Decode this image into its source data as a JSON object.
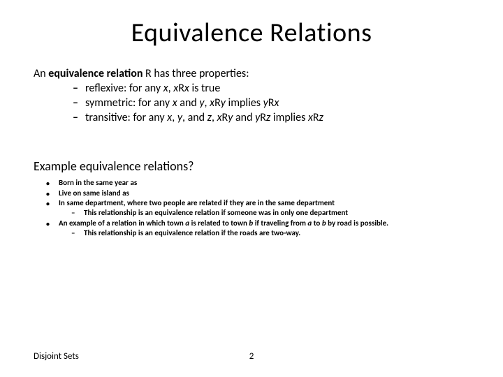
{
  "title": "Equivalence Relations",
  "intro_prefix": "An ",
  "intro_bold": "equivalence relation",
  "intro_suffix": " R has three properties:",
  "props": [
    {
      "label": "reflexive: for any ",
      "i1": "x",
      "mid": ", ",
      "i2": "x",
      "r": "R",
      "i3": "x",
      "end": " is true"
    },
    {
      "label": "symmetric: for any ",
      "i1": "x",
      "mid1": " and ",
      "i2": "y",
      "mid2": ", ",
      "i3": "x",
      "r1": "R",
      "i4": "y",
      "mid3": " implies ",
      "i5": "y",
      "r2": "R",
      "i6": "x"
    },
    {
      "label": "transitive: for any ",
      "i1": "x",
      "c1": ", ",
      "i2": "y",
      "c2": ", and ",
      "i3": "z",
      "c3": ", ",
      "i4": "x",
      "r1": "R",
      "i5": "y",
      "c4": " and ",
      "i6": "y",
      "r2": "R",
      "i7": "z",
      "c5": " implies ",
      "i8": "x",
      "r3": "R",
      "i9": "z"
    }
  ],
  "example_q": "Example equivalence relations?",
  "examples": [
    {
      "text": "Born in the same year as"
    },
    {
      "text": "Live on same island as"
    },
    {
      "text": "In same department, where two people are related if they are in the same department",
      "sub": "This relationship is an equivalence relation if someone was in only one department"
    },
    {
      "pre": "An example of a relation in which town ",
      "i1": "a",
      "mid1": " is related to town ",
      "i2": "b",
      "mid2": " if traveling from ",
      "i3": "a",
      "mid3": " to ",
      "i4": "b",
      "end": " by road is possible.",
      "sub": "This relationship is an equivalence relation if the roads are two-way."
    }
  ],
  "footer_left": "Disjoint Sets",
  "page_num": "2",
  "colors": {
    "bg": "#ffffff",
    "text": "#000000"
  }
}
